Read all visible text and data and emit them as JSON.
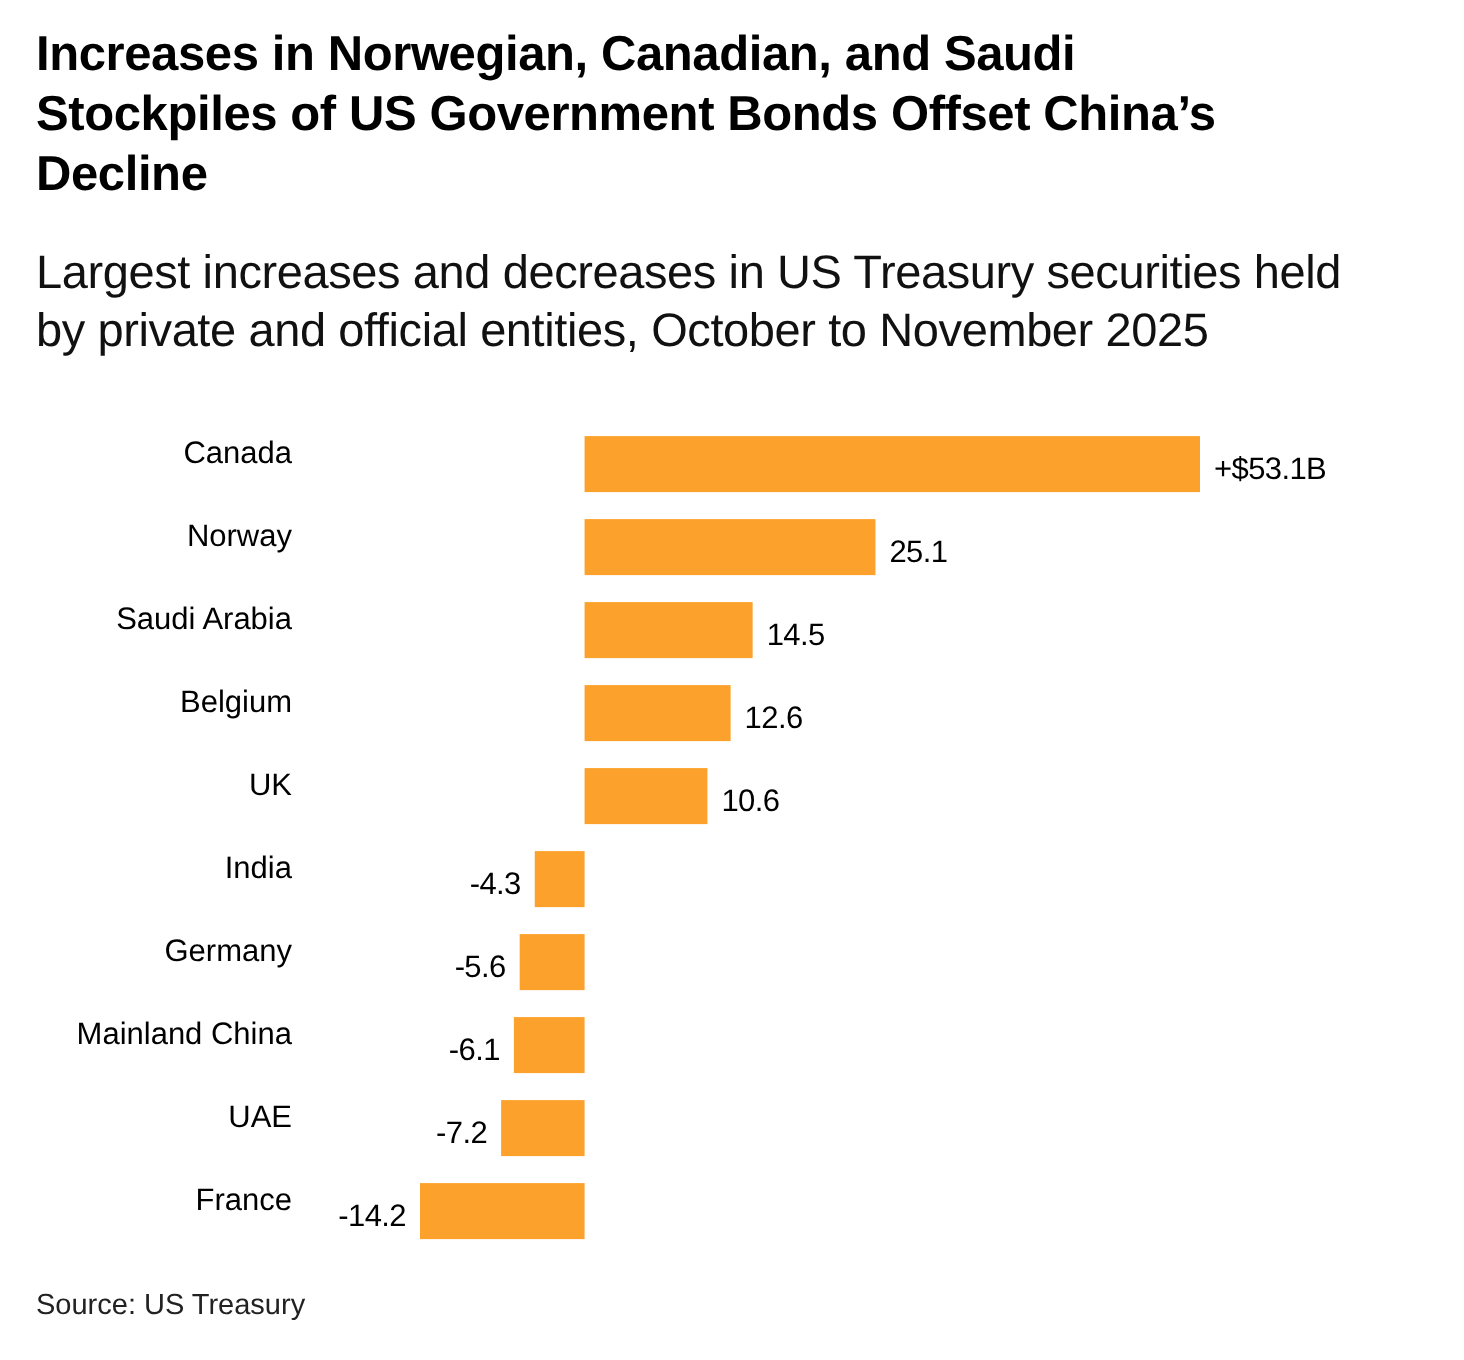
{
  "chart_data": {
    "type": "bar",
    "orientation": "horizontal",
    "title": "Increases in Norwegian, Canadian, and Saudi Stockpiles of US Government Bonds Offset China’s Decline",
    "subtitle": "Largest increases and decreases in US Treasury securities held by private and official entities, October to November 2025",
    "categories": [
      "Canada",
      "Norway",
      "Saudi Arabia",
      "Belgium",
      "UK",
      "India",
      "Germany",
      "Mainland China",
      "UAE",
      "France"
    ],
    "values": [
      53.1,
      25.1,
      14.5,
      12.6,
      10.6,
      -4.3,
      -5.6,
      -6.1,
      -7.2,
      -14.2
    ],
    "value_labels": [
      "+$53.1B",
      "25.1",
      "14.5",
      "12.6",
      "10.6",
      "-4.3",
      "-5.6",
      "-6.1",
      "-7.2",
      "-14.2"
    ],
    "color": "#fca22c",
    "annotations": [
      "Source: US Treasury"
    ]
  }
}
